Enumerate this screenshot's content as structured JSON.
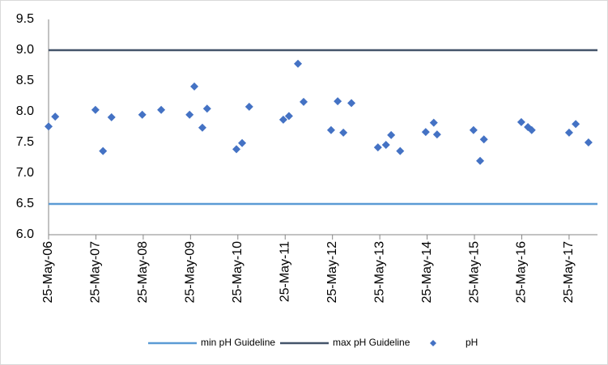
{
  "chart_data": {
    "type": "scatter",
    "xlim": [
      2006.4,
      2018.0
    ],
    "xticks": [
      {
        "value": 2006.4,
        "label": "25-May-06"
      },
      {
        "value": 2007.4,
        "label": "25-May-07"
      },
      {
        "value": 2008.4,
        "label": "25-May-08"
      },
      {
        "value": 2009.4,
        "label": "25-May-09"
      },
      {
        "value": 2010.4,
        "label": "25-May-10"
      },
      {
        "value": 2011.4,
        "label": "25-May-11"
      },
      {
        "value": 2012.4,
        "label": "25-May-12"
      },
      {
        "value": 2013.4,
        "label": "25-May-13"
      },
      {
        "value": 2014.4,
        "label": "25-May-14"
      },
      {
        "value": 2015.4,
        "label": "25-May-15"
      },
      {
        "value": 2016.4,
        "label": "25-May-16"
      },
      {
        "value": 2017.4,
        "label": "25-May-17"
      }
    ],
    "ylim": [
      6.0,
      9.5
    ],
    "yticks": [
      {
        "value": 6,
        "label": "6.0"
      },
      6.5,
      {
        "value": 7,
        "label": "7.0"
      },
      7.5,
      {
        "value": 8,
        "label": "8.0"
      },
      8.5,
      {
        "value": 9,
        "label": "9.0"
      },
      9.5
    ],
    "grid": false,
    "legend": "bottom",
    "series": [
      {
        "name": "min pH Guideline",
        "color": "#5b9bd5",
        "kind": "line",
        "x": [
          2006.4,
          2018.0
        ],
        "values": [
          6.5,
          6.5
        ]
      },
      {
        "name": "max pH Guideline",
        "color": "#44546a",
        "kind": "line",
        "x": [
          2006.4,
          2018.0
        ],
        "values": [
          9.0,
          9.0
        ]
      },
      {
        "name": "pH",
        "color": "#4472c4",
        "kind": "diamond",
        "x": [
          2006.4,
          2006.54,
          2007.39,
          2007.55,
          2007.73,
          2008.38,
          2008.78,
          2009.38,
          2009.48,
          2009.65,
          2009.75,
          2010.37,
          2010.49,
          2010.64,
          2011.36,
          2011.48,
          2011.67,
          2011.79,
          2012.37,
          2012.51,
          2012.63,
          2012.8,
          2013.36,
          2013.53,
          2013.64,
          2013.83,
          2014.37,
          2014.54,
          2014.61,
          2015.38,
          2015.52,
          2015.6,
          2016.39,
          2016.53,
          2016.61,
          2017.4,
          2017.54,
          2017.81
        ],
        "values": [
          7.76,
          7.92,
          8.03,
          7.36,
          7.91,
          7.95,
          8.03,
          7.95,
          8.41,
          7.74,
          8.05,
          7.39,
          7.49,
          8.08,
          7.87,
          7.93,
          8.78,
          8.16,
          7.7,
          8.17,
          7.66,
          8.14,
          7.42,
          7.46,
          7.62,
          7.36,
          7.67,
          7.82,
          7.63,
          7.7,
          7.2,
          7.55,
          7.83,
          7.75,
          7.7,
          7.66,
          7.8,
          7.5
        ]
      }
    ]
  }
}
